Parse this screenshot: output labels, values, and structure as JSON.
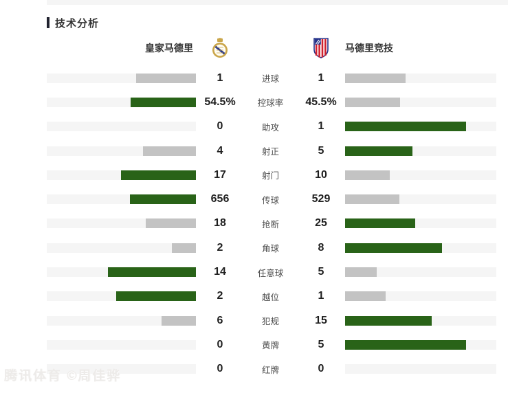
{
  "page": {
    "section_title": "技术分析",
    "watermark": "腾讯体育 ©周佳骅"
  },
  "teams": {
    "home": {
      "name": "皇家马德里"
    },
    "away": {
      "name": "马德里竞技"
    }
  },
  "colors": {
    "leader_fill": "#296318",
    "trailer_fill": "#c3c3c3",
    "track": "#f5f5f5"
  },
  "chart_data": {
    "type": "bar",
    "title": "技术分析",
    "legend_entries": [
      "皇家马德里",
      "马德里竞技"
    ],
    "layout": "mirrored horizontal bars, fill width = value/(home+away) * 80% of track, leader green / trailer gray",
    "rows": [
      {
        "label": "进球",
        "home_display": "1",
        "away_display": "1",
        "home": 1,
        "away": 1
      },
      {
        "label": "控球率",
        "home_display": "54.5%",
        "away_display": "45.5%",
        "home": 54.5,
        "away": 45.5
      },
      {
        "label": "助攻",
        "home_display": "0",
        "away_display": "1",
        "home": 0,
        "away": 1
      },
      {
        "label": "射正",
        "home_display": "4",
        "away_display": "5",
        "home": 4,
        "away": 5
      },
      {
        "label": "射门",
        "home_display": "17",
        "away_display": "10",
        "home": 17,
        "away": 10
      },
      {
        "label": "传球",
        "home_display": "656",
        "away_display": "529",
        "home": 656,
        "away": 529
      },
      {
        "label": "抢断",
        "home_display": "18",
        "away_display": "25",
        "home": 18,
        "away": 25
      },
      {
        "label": "角球",
        "home_display": "2",
        "away_display": "8",
        "home": 2,
        "away": 8
      },
      {
        "label": "任意球",
        "home_display": "14",
        "away_display": "5",
        "home": 14,
        "away": 5
      },
      {
        "label": "越位",
        "home_display": "2",
        "away_display": "1",
        "home": 2,
        "away": 1
      },
      {
        "label": "犯规",
        "home_display": "6",
        "away_display": "15",
        "home": 6,
        "away": 15
      },
      {
        "label": "黄牌",
        "home_display": "0",
        "away_display": "5",
        "home": 0,
        "away": 5
      },
      {
        "label": "红牌",
        "home_display": "0",
        "away_display": "0",
        "home": 0,
        "away": 0
      }
    ]
  }
}
